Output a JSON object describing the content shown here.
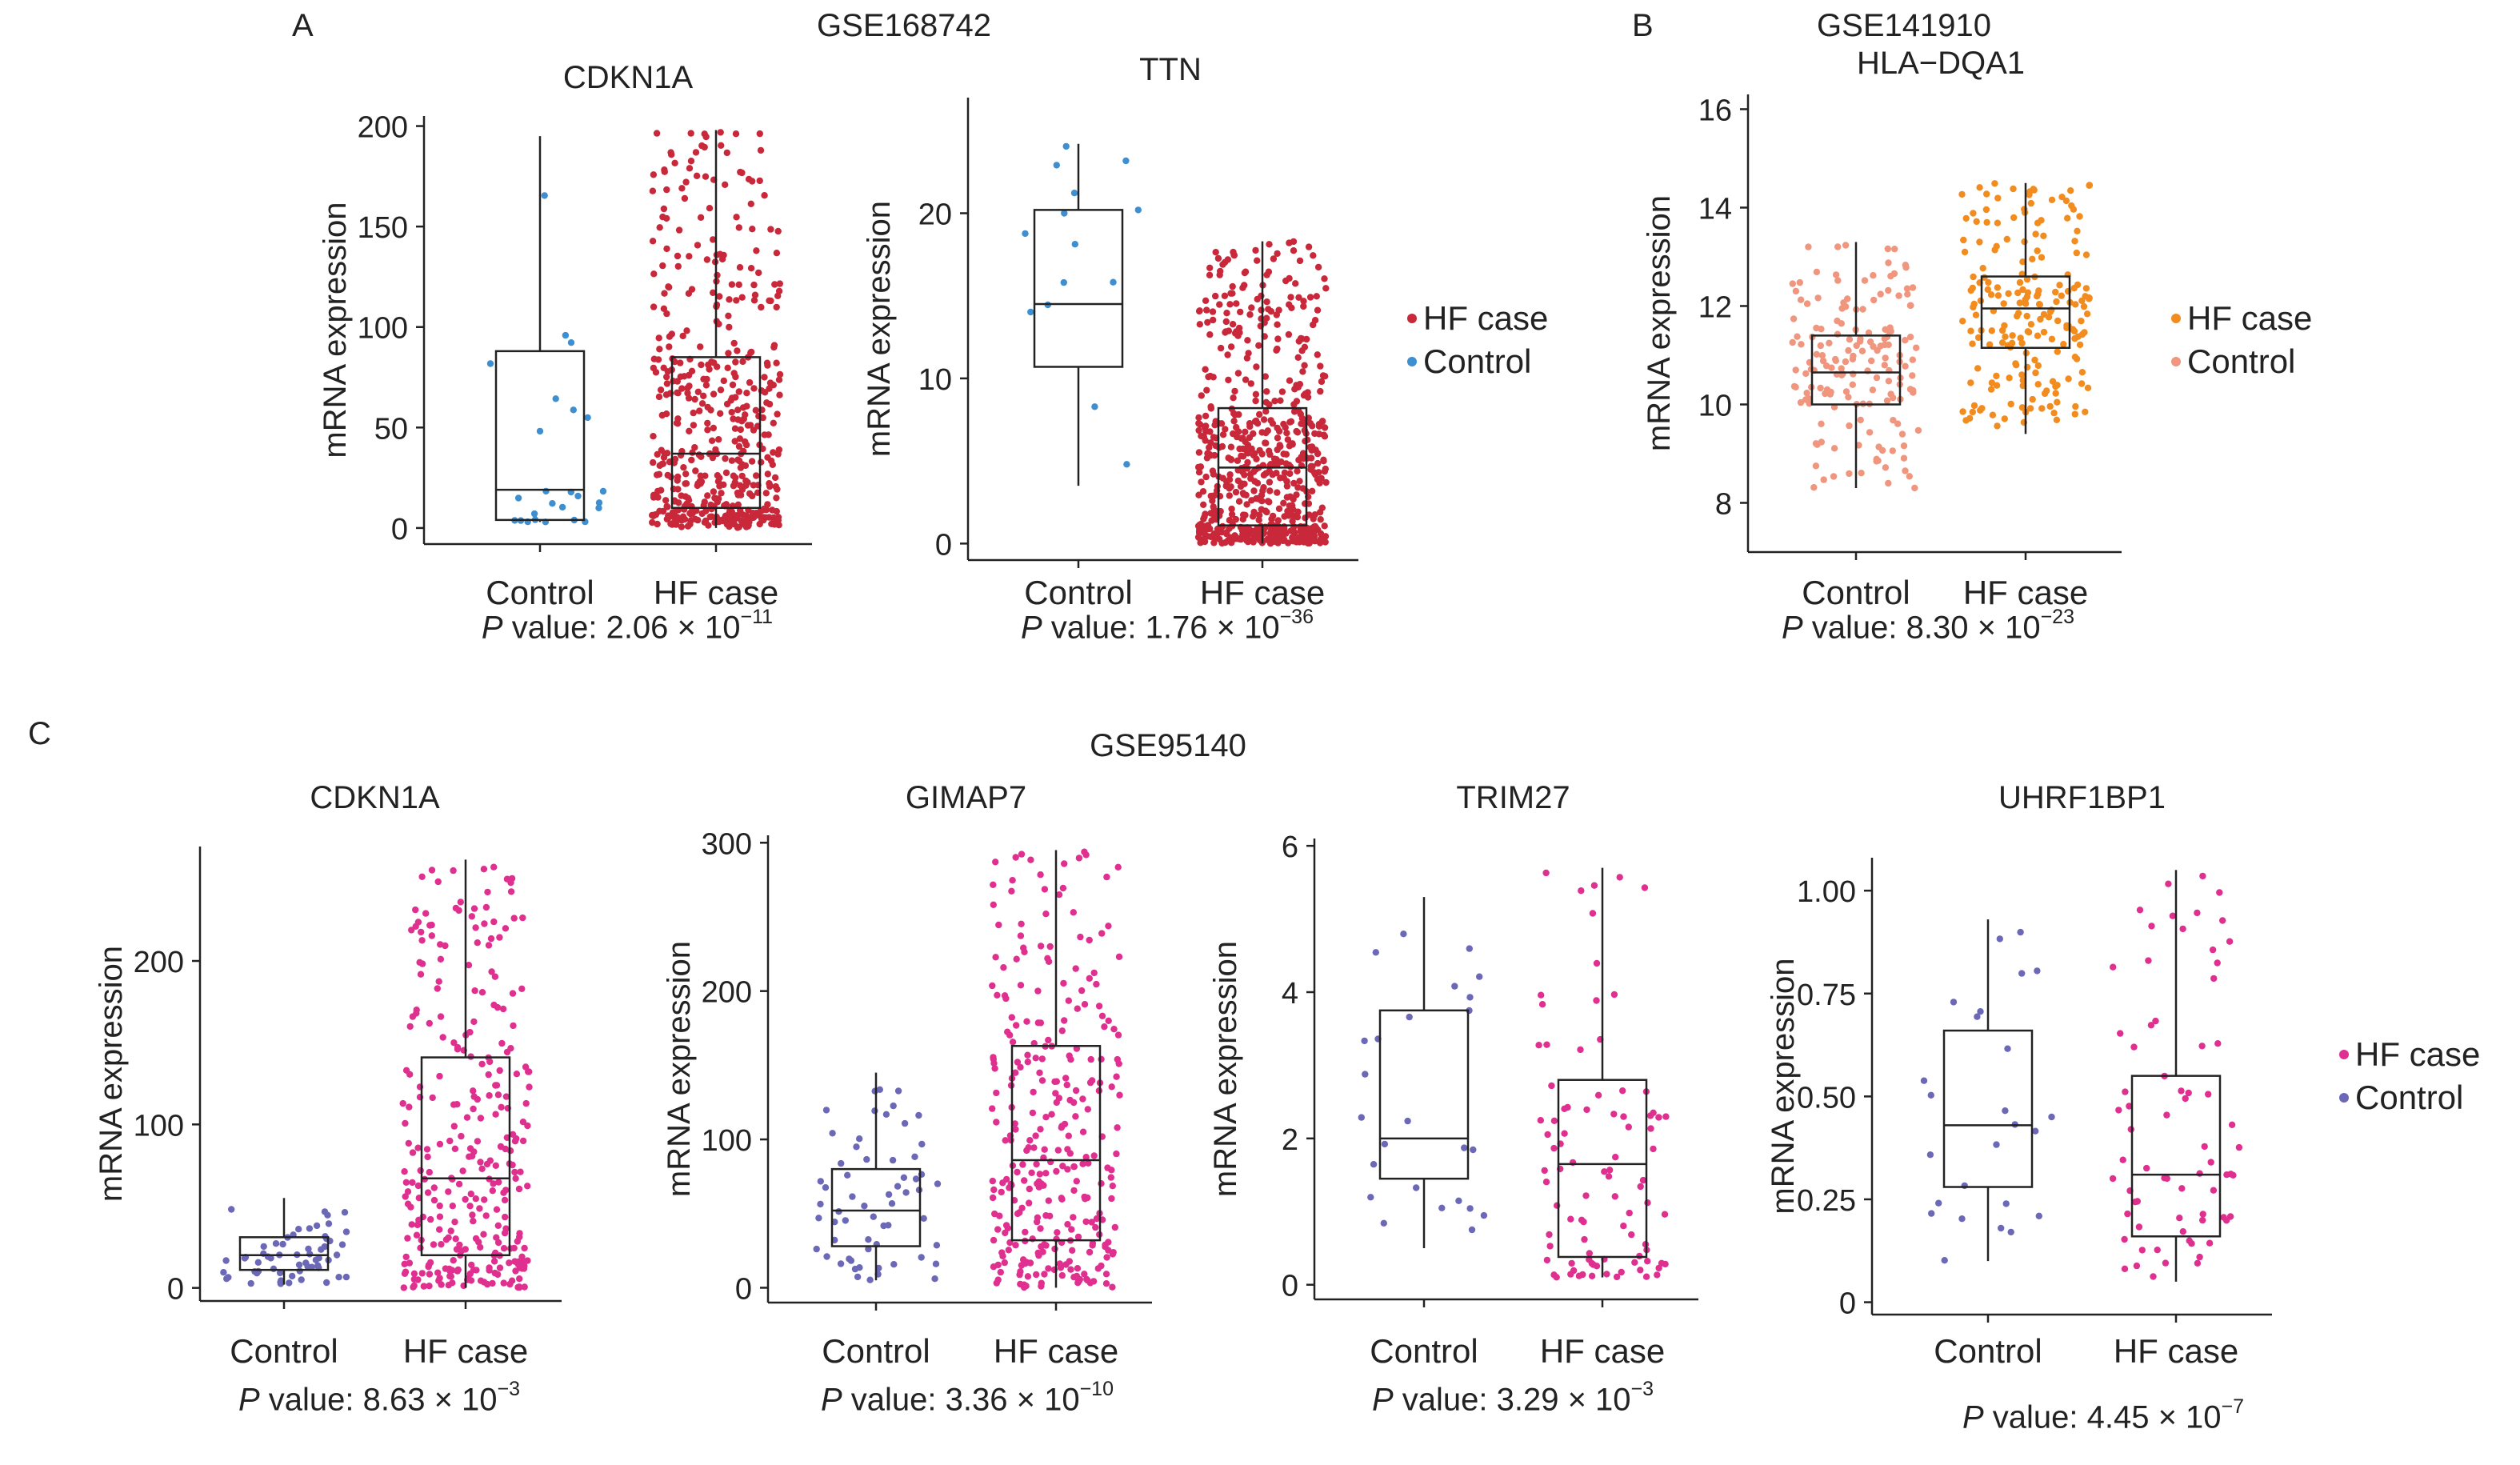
{
  "panels": {
    "A": "A",
    "B": "B",
    "C": "C"
  },
  "datasets": {
    "A": "GSE168742",
    "B": "GSE141910",
    "C": "GSE95140"
  },
  "legend_labels": {
    "case": "HF case",
    "control": "Control"
  },
  "colors": {
    "A": {
      "case": "#c8283a",
      "control": "#3d8fd1"
    },
    "B": {
      "case": "#f28c1f",
      "control": "#f0957e"
    },
    "C": {
      "case": "#e0308f",
      "control": "#6c68b8"
    },
    "box": "#222222"
  },
  "pvalues": [
    {
      "prefix": "P",
      "text": " value: 2.06 × 10",
      "exp": "−11"
    },
    {
      "prefix": "P",
      "text": " value: 1.76 × 10",
      "exp": "−36"
    },
    {
      "prefix": "P",
      "text": " value: 8.30 × 10",
      "exp": "−23"
    },
    {
      "prefix": "P",
      "text": " value: 8.63 × 10",
      "exp": "−3"
    },
    {
      "prefix": "P",
      "text": " value: 3.36 × 10",
      "exp": "−10"
    },
    {
      "prefix": "P",
      "text": " value: 3.29 × 10",
      "exp": "−3"
    },
    {
      "prefix": "P",
      "text": " value: 4.45 × 10",
      "exp": "−7"
    }
  ],
  "chart_data": [
    {
      "type": "box+strip",
      "panel": "A",
      "dataset": "GSE168742",
      "title": "CDKN1A",
      "ylabel": "mRNA expression",
      "categories": [
        "Control",
        "HF case"
      ],
      "ylim": [
        -8,
        205
      ],
      "yticks": [
        0,
        50,
        100,
        150,
        200
      ],
      "yticklabels": [
        "0",
        "50",
        "100",
        "150",
        "200"
      ],
      "box": [
        {
          "group": "Control",
          "whisker_low": 3,
          "q1": 4,
          "median": 19,
          "q3": 88,
          "whisker_high": 195
        },
        {
          "group": "HF case",
          "whisker_low": 0,
          "q1": 10,
          "median": 37,
          "q3": 85,
          "whisker_high": 198
        }
      ],
      "n": [
        25,
        500
      ],
      "legend": "no"
    },
    {
      "type": "box+strip",
      "panel": "A",
      "dataset": "GSE168742",
      "title": "TTN",
      "ylabel": "mRNA expression",
      "categories": [
        "Control",
        "HF case"
      ],
      "ylim": [
        -1,
        27
      ],
      "yticks": [
        0,
        10,
        20
      ],
      "yticklabels": [
        "0",
        "10",
        "20"
      ],
      "box": [
        {
          "group": "Control",
          "whisker_low": 3.5,
          "q1": 10.7,
          "median": 14.5,
          "q3": 20.2,
          "whisker_high": 24.2
        },
        {
          "group": "HF case",
          "whisker_low": 0,
          "q1": 1.1,
          "median": 4.6,
          "q3": 8.2,
          "whisker_high": 18.3
        }
      ],
      "n": [
        14,
        650
      ],
      "legend": "right"
    },
    {
      "type": "box+strip",
      "panel": "B",
      "dataset": "GSE141910",
      "title": "HLA−DQA1",
      "ylabel": "mRNA expression",
      "categories": [
        "Control",
        "HF case"
      ],
      "ylim": [
        7,
        16.3
      ],
      "yticks": [
        8,
        10,
        12,
        14,
        16
      ],
      "yticklabels": [
        "8",
        "10",
        "12",
        "14",
        "16"
      ],
      "box": [
        {
          "group": "Control",
          "whisker_low": 8.3,
          "q1": 10,
          "median": 10.65,
          "q3": 11.4,
          "whisker_high": 13.3
        },
        {
          "group": "HF case",
          "whisker_low": 9.4,
          "q1": 11.15,
          "median": 11.95,
          "q3": 12.6,
          "whisker_high": 14.5
        }
      ],
      "n": [
        166,
        200
      ],
      "legend": "right"
    },
    {
      "type": "box+strip",
      "panel": "C",
      "dataset": "GSE95140",
      "title": "CDKN1A",
      "ylabel": "mRNA expression",
      "categories": [
        "Control",
        "HF case"
      ],
      "ylim": [
        -8,
        270
      ],
      "yticks": [
        0,
        100,
        200
      ],
      "yticklabels": [
        "0",
        "100",
        "200"
      ],
      "box": [
        {
          "group": "Control",
          "whisker_low": 2,
          "q1": 11,
          "median": 20,
          "q3": 31,
          "whisker_high": 55
        },
        {
          "group": "HF case",
          "whisker_low": 0,
          "q1": 20,
          "median": 67,
          "q3": 141,
          "whisker_high": 262
        }
      ],
      "n": [
        60,
        300
      ],
      "legend": "no"
    },
    {
      "type": "box+strip",
      "panel": "C",
      "dataset": "GSE95140",
      "title": "GIMAP7",
      "ylabel": "mRNA expression",
      "categories": [
        "Control",
        "HF case"
      ],
      "ylim": [
        -10,
        305
      ],
      "yticks": [
        0,
        100,
        200,
        300
      ],
      "yticklabels": [
        "0",
        "100",
        "200",
        "300"
      ],
      "box": [
        {
          "group": "Control",
          "whisker_low": 5,
          "q1": 28,
          "median": 52,
          "q3": 80,
          "whisker_high": 145
        },
        {
          "group": "HF case",
          "whisker_low": 0,
          "q1": 32,
          "median": 86,
          "q3": 163,
          "whisker_high": 295
        }
      ],
      "n": [
        60,
        300
      ],
      "legend": "no"
    },
    {
      "type": "box+strip",
      "panel": "C",
      "dataset": "GSE95140",
      "title": "TRIM27",
      "ylabel": "mRNA expression",
      "categories": [
        "Control",
        "HF case"
      ],
      "ylim": [
        -0.2,
        6.1
      ],
      "yticks": [
        0,
        2,
        4,
        6
      ],
      "yticklabels": [
        "0",
        "2",
        "4",
        "6"
      ],
      "box": [
        {
          "group": "Control",
          "whisker_low": 0.5,
          "q1": 1.45,
          "median": 2.0,
          "q3": 3.75,
          "whisker_high": 5.3
        },
        {
          "group": "HF case",
          "whisker_low": 0.1,
          "q1": 0.38,
          "median": 1.65,
          "q3": 2.8,
          "whisker_high": 5.7
        }
      ],
      "n": [
        25,
        90
      ],
      "legend": "no"
    },
    {
      "type": "box+strip",
      "panel": "C",
      "dataset": "GSE95140",
      "title": "UHRF1BP1",
      "ylabel": "mRNA expression",
      "categories": [
        "Control",
        "HF case"
      ],
      "ylim": [
        -0.03,
        1.08
      ],
      "yticks": [
        0,
        0.25,
        0.5,
        0.75,
        1.0
      ],
      "yticklabels": [
        "0",
        "0.25",
        "0.50",
        "0.75",
        "1.00"
      ],
      "box": [
        {
          "group": "Control",
          "whisker_low": 0.1,
          "q1": 0.28,
          "median": 0.43,
          "q3": 0.66,
          "whisker_high": 0.93
        },
        {
          "group": "HF case",
          "whisker_low": 0.05,
          "q1": 0.16,
          "median": 0.31,
          "q3": 0.55,
          "whisker_high": 1.05
        }
      ],
      "n": [
        25,
        70
      ],
      "legend": "right"
    }
  ]
}
